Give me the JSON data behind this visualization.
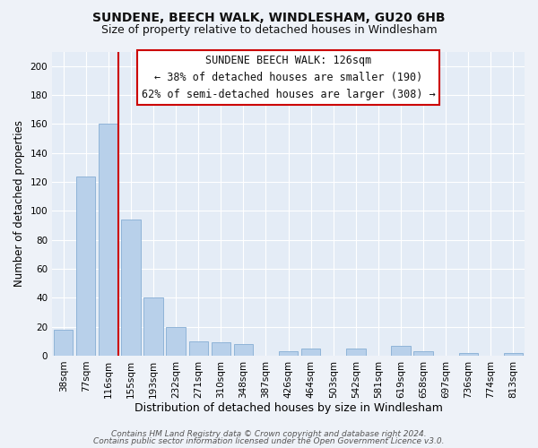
{
  "title": "SUNDENE, BEECH WALK, WINDLESHAM, GU20 6HB",
  "subtitle": "Size of property relative to detached houses in Windlesham",
  "xlabel": "Distribution of detached houses by size in Windlesham",
  "ylabel": "Number of detached properties",
  "bar_labels": [
    "38sqm",
    "77sqm",
    "116sqm",
    "155sqm",
    "193sqm",
    "232sqm",
    "271sqm",
    "310sqm",
    "348sqm",
    "387sqm",
    "426sqm",
    "464sqm",
    "503sqm",
    "542sqm",
    "581sqm",
    "619sqm",
    "658sqm",
    "697sqm",
    "736sqm",
    "774sqm",
    "813sqm"
  ],
  "bar_values": [
    18,
    124,
    160,
    94,
    40,
    20,
    10,
    9,
    8,
    0,
    3,
    5,
    0,
    5,
    0,
    7,
    3,
    0,
    2,
    0,
    2
  ],
  "bar_color": "#b8d0ea",
  "bar_edge_color": "#90b4d8",
  "highlight_bar_index": 2,
  "highlight_line_color": "#cc0000",
  "ylim": [
    0,
    210
  ],
  "yticks": [
    0,
    20,
    40,
    60,
    80,
    100,
    120,
    140,
    160,
    180,
    200
  ],
  "annotation_box_text_line1": "SUNDENE BEECH WALK: 126sqm",
  "annotation_box_text_line2": "← 38% of detached houses are smaller (190)",
  "annotation_box_text_line3": "62% of semi-detached houses are larger (308) →",
  "annotation_box_edge_color": "#cc0000",
  "annotation_box_face_color": "#ffffff",
  "footer_line1": "Contains HM Land Registry data © Crown copyright and database right 2024.",
  "footer_line2": "Contains public sector information licensed under the Open Government Licence v3.0.",
  "background_color": "#eef2f8",
  "plot_background_color": "#e4ecf6",
  "grid_color": "#ffffff",
  "title_fontsize": 10,
  "subtitle_fontsize": 9,
  "xlabel_fontsize": 9,
  "ylabel_fontsize": 8.5,
  "tick_fontsize": 7.5,
  "annotation_fontsize": 8.5,
  "footer_fontsize": 6.5
}
